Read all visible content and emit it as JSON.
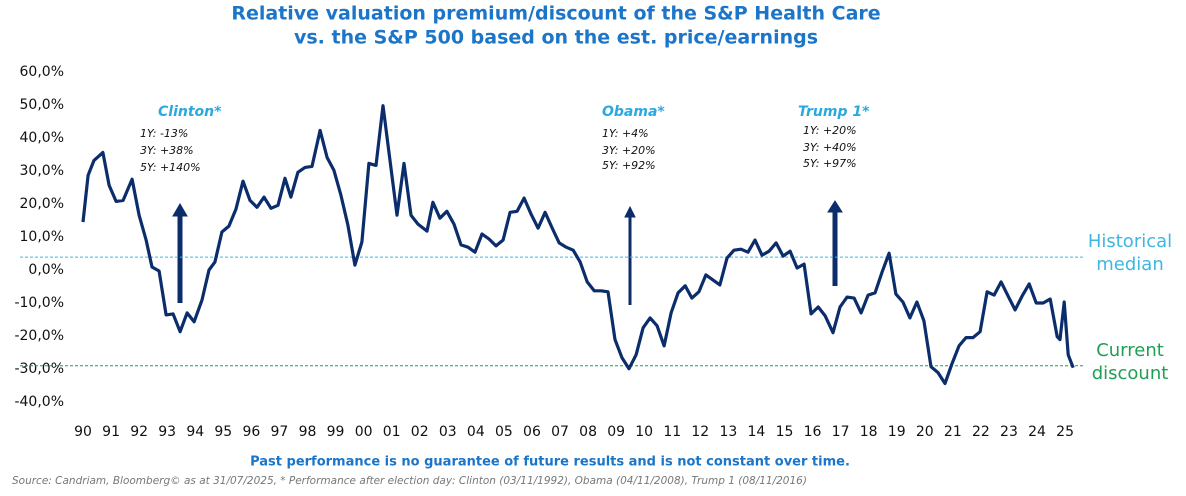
{
  "chart_data": {
    "type": "line",
    "title": [
      "Relative valuation premium/discount of the S&P Health Care",
      "vs. the S&P 500 based on the est. price/earnings"
    ],
    "x": [
      1990.0,
      1990.18,
      1990.39,
      1990.71,
      1990.93,
      1991.18,
      1991.43,
      1991.75,
      1992.0,
      1992.25,
      1992.46,
      1992.71,
      1992.96,
      1993.21,
      1993.46,
      1993.71,
      1993.96,
      1994.24,
      1994.49,
      1994.7,
      1994.95,
      1995.2,
      1995.45,
      1995.7,
      1995.95,
      1996.2,
      1996.45,
      1996.7,
      1996.95,
      1997.2,
      1997.41,
      1997.66,
      1997.91,
      1998.16,
      1998.45,
      1998.7,
      1998.94,
      1999.19,
      1999.44,
      1999.69,
      1999.94,
      2000.19,
      2000.44,
      2000.69,
      2000.94,
      2001.19,
      2001.44,
      2001.69,
      2001.94,
      2002.26,
      2002.47,
      2002.72,
      2002.97,
      2003.22,
      2003.47,
      2003.72,
      2003.97,
      2004.22,
      2004.47,
      2004.72,
      2004.97,
      2005.22,
      2005.47,
      2005.72,
      2005.97,
      2006.22,
      2006.47,
      2006.72,
      2006.97,
      2007.22,
      2007.47,
      2007.72,
      2007.97,
      2008.22,
      2008.46,
      2008.71,
      2008.96,
      2009.21,
      2009.46,
      2009.71,
      2009.96,
      2010.21,
      2010.46,
      2010.71,
      2010.96,
      2011.21,
      2011.46,
      2011.7,
      2011.95,
      2012.2,
      2012.45,
      2012.7,
      2012.95,
      2013.2,
      2013.45,
      2013.7,
      2013.95,
      2014.2,
      2014.45,
      2014.7,
      2014.95,
      2015.2,
      2015.45,
      2015.7,
      2015.95,
      2016.2,
      2016.45,
      2016.73,
      2016.98,
      2017.23,
      2017.48,
      2017.73,
      2017.98,
      2018.23,
      2018.48,
      2018.73,
      2018.97,
      2019.22,
      2019.47,
      2019.72,
      2019.97,
      2020.22,
      2020.47,
      2020.72,
      2020.97,
      2021.22,
      2021.47,
      2021.72,
      2021.97,
      2022.22,
      2022.47,
      2022.72,
      2022.97,
      2023.22,
      2023.47,
      2023.72,
      2023.97,
      2024.22,
      2024.47,
      2024.72,
      2024.82,
      2024.97,
      2025.11,
      2025.29
    ],
    "series": [
      {
        "color": "#0b2d6b",
        "values": [
          14.5,
          28.7,
          33.2,
          35.6,
          25.7,
          20.8,
          21.1,
          27.5,
          16.6,
          9.1,
          0.9,
          -0.3,
          -13.6,
          -13.3,
          -18.7,
          -13.0,
          -15.7,
          -9.1,
          0,
          2.4,
          11.5,
          13.3,
          18.4,
          26.9,
          21.1,
          19.0,
          22.1,
          18.7,
          19.6,
          27.8,
          22.1,
          29.6,
          31.1,
          31.4,
          42.3,
          34.1,
          30.2,
          22.7,
          13.6,
          1.5,
          8.5,
          32.3,
          31.7,
          49.8,
          33.2,
          16.6,
          32.3,
          16.6,
          13.9,
          11.8,
          20.5,
          15.7,
          17.8,
          13.9,
          7.6,
          6.9,
          5.4,
          10.9,
          9.4,
          7.3,
          9.1,
          17.5,
          17.8,
          21.8,
          16.9,
          12.7,
          17.5,
          12.7,
          8.2,
          6.9,
          6.0,
          2.4,
          -3.6,
          -6.3,
          -6.3,
          -6.6,
          -21.1,
          -26.6,
          -29.9,
          -25.7,
          -17.5,
          -14.5,
          -16.9,
          -23.0,
          -13.0,
          -6.9,
          -4.8,
          -8.5,
          -6.6,
          -1.5,
          -3.0,
          -4.5,
          3.6,
          6.0,
          6.3,
          5.4,
          9.1,
          4.5,
          5.7,
          8.2,
          4.2,
          5.7,
          0.6,
          1.8,
          -13.3,
          -11.2,
          -13.9,
          -19.0,
          -11.2,
          -8.2,
          -8.5,
          -13.0,
          -7.6,
          -6.9,
          -0.6,
          5.1,
          -7.3,
          -9.7,
          -14.5,
          -9.7,
          -15.4,
          -29.3,
          -31.1,
          -34.4,
          -28.4,
          -23.0,
          -20.5,
          -20.5,
          -18.7,
          -6.6,
          -7.6,
          -3.6,
          -7.9,
          -12.1,
          -7.9,
          -4.2,
          -10.0,
          -10.0,
          -8.8,
          -20.2,
          -21.1,
          -9.7,
          -25.7,
          -29.6
        ]
      }
    ],
    "xlim": [
      1989.7,
      2025.5
    ],
    "xticks": [
      {
        "value": 1990,
        "label": "90"
      },
      {
        "value": 1991,
        "label": "91"
      },
      {
        "value": 1992,
        "label": "92"
      },
      {
        "value": 1993,
        "label": "93"
      },
      {
        "value": 1994,
        "label": "94"
      },
      {
        "value": 1995,
        "label": "95"
      },
      {
        "value": 1996,
        "label": "96"
      },
      {
        "value": 1997,
        "label": "97"
      },
      {
        "value": 1998,
        "label": "98"
      },
      {
        "value": 1999,
        "label": "99"
      },
      {
        "value": 2000,
        "label": "00"
      },
      {
        "value": 2001,
        "label": "01"
      },
      {
        "value": 2002,
        "label": "02"
      },
      {
        "value": 2003,
        "label": "03"
      },
      {
        "value": 2004,
        "label": "04"
      },
      {
        "value": 2005,
        "label": "05"
      },
      {
        "value": 2006,
        "label": "06"
      },
      {
        "value": 2007,
        "label": "07"
      },
      {
        "value": 2008,
        "label": "08"
      },
      {
        "value": 2009,
        "label": "09"
      },
      {
        "value": 2010,
        "label": "10"
      },
      {
        "value": 2011,
        "label": "11"
      },
      {
        "value": 2012,
        "label": "12"
      },
      {
        "value": 2013,
        "label": "13"
      },
      {
        "value": 2014,
        "label": "14"
      },
      {
        "value": 2015,
        "label": "15"
      },
      {
        "value": 2016,
        "label": "16"
      },
      {
        "value": 2017,
        "label": "17"
      },
      {
        "value": 2018,
        "label": "18"
      },
      {
        "value": 2019,
        "label": "19"
      },
      {
        "value": 2020,
        "label": "20"
      },
      {
        "value": 2021,
        "label": "21"
      },
      {
        "value": 2022,
        "label": "22"
      },
      {
        "value": 2023,
        "label": "23"
      },
      {
        "value": 2024,
        "label": "24"
      },
      {
        "value": 2025,
        "label": "25"
      }
    ],
    "ylim": [
      -40,
      60
    ],
    "yticks": [
      {
        "value": 60,
        "label": "60,0%"
      },
      {
        "value": 50,
        "label": "50,0%"
      },
      {
        "value": 40,
        "label": "40,0%"
      },
      {
        "value": 30,
        "label": "30,0%"
      },
      {
        "value": 20,
        "label": "20,0%"
      },
      {
        "value": 10,
        "label": "10,0%"
      },
      {
        "value": 0,
        "label": "0,0%"
      },
      {
        "value": -10,
        "label": "-10,0%"
      },
      {
        "value": -20,
        "label": "-20,0%"
      },
      {
        "value": -30,
        "label": "-30,0%"
      },
      {
        "value": -40,
        "label": "-40,0%"
      }
    ],
    "grid": false,
    "reference_lines": [
      {
        "label": "Historical median",
        "value": 3.9,
        "color": "#3fb6e0"
      },
      {
        "label": "Current discount",
        "value": -29.0,
        "color": "#1f9e55"
      }
    ],
    "annotations": [
      {
        "label": "Clinton*",
        "lines": [
          "1Y: -13%",
          "3Y: +38%",
          "5Y: +140%"
        ]
      },
      {
        "label": "Obama*",
        "lines": [
          "1Y: +4%",
          "3Y: +20%",
          "5Y: +92%"
        ]
      },
      {
        "label": "Trump 1*",
        "lines": [
          "1Y: +20%",
          "3Y: +40%",
          "5Y: +97%"
        ]
      }
    ],
    "note": "Past performance is no guarantee of future results and is not constant over time.",
    "source": "Source: Candriam, Bloomberg© as at 31/07/2025, * Performance after election day: Clinton (03/11/1992), Obama (04/11/2008), Trump 1 (08/11/2016)"
  }
}
